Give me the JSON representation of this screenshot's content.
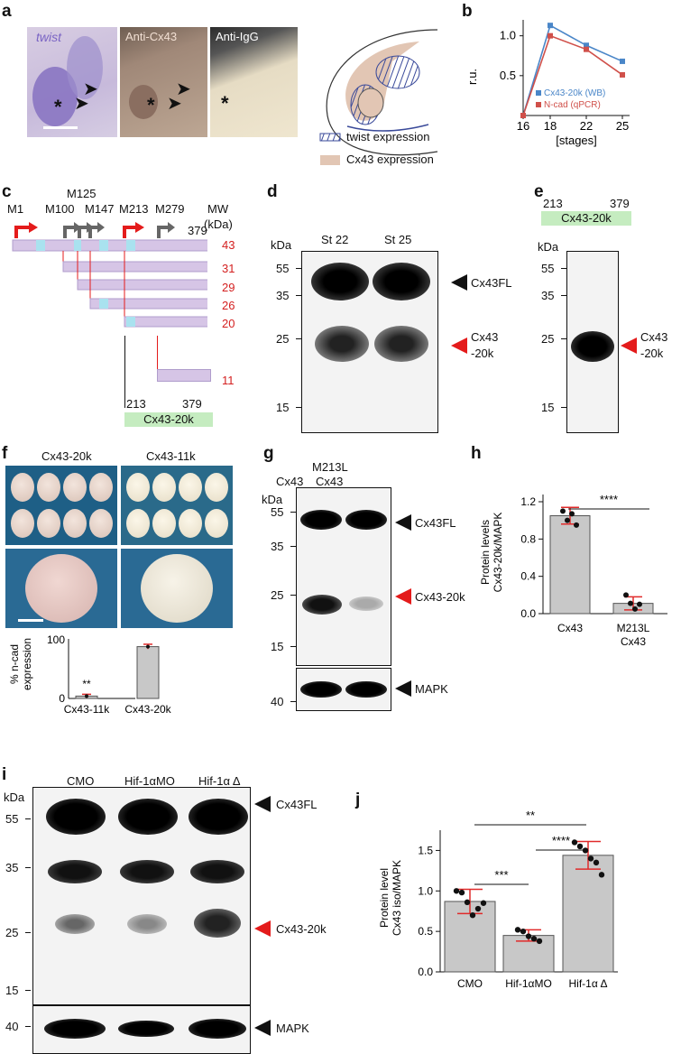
{
  "panel_letters": {
    "a": "a",
    "b": "b",
    "c": "c",
    "d": "d",
    "e": "e",
    "f": "f",
    "g": "g",
    "h": "h",
    "i": "i",
    "j": "j"
  },
  "panel_a": {
    "img1_label": "twist",
    "img2_label": "Anti-Cx43",
    "img3_label": "Anti-IgG",
    "asterisk": "*",
    "legend_twist": "twist expression",
    "legend_cx43": "Cx43 expression",
    "colors": {
      "twist": "#6a5aa8",
      "cx43": "#e2c6b4"
    }
  },
  "panel_b": {
    "ylabel": "r.u.",
    "xlabel": "[stages]",
    "yticks": [
      "1.0",
      "0.5"
    ],
    "xticks": [
      "16",
      "18",
      "22",
      "25"
    ],
    "legend1": "Cx43-20k (WB)",
    "legend2": "N-cad (qPCR)"
  },
  "panel_c": {
    "starts": [
      "M1",
      "M100",
      "M125",
      "M147",
      "M213",
      "M279"
    ],
    "mw_title": "MW",
    "mw_unit": "(kDa)",
    "end_label": "379",
    "mw_values": [
      "43",
      "31",
      "29",
      "26",
      "20",
      "11"
    ],
    "frag_start": "213",
    "frag_end": "379",
    "frag_name": "Cx43-20k"
  },
  "panel_d": {
    "unit": "kDa",
    "lanes": [
      "St 22",
      "St 25"
    ],
    "markers": [
      "55",
      "35",
      "25",
      "15"
    ],
    "label_fl": "Cx43FL",
    "label_20k_1": "Cx43",
    "label_20k_2": "-20k"
  },
  "panel_e": {
    "frag_start": "213",
    "frag_end": "379",
    "frag_name": "Cx43-20k",
    "unit": "kDa",
    "markers": [
      "55",
      "35",
      "25",
      "15"
    ],
    "label_1": "Cx43",
    "label_2": "-20k"
  },
  "panel_f": {
    "title1": "Cx43-20k",
    "title2": "Cx43-11k",
    "ylabel1": "% n-cad",
    "ylabel2": "expression",
    "ytick_top": "100",
    "ytick_bottom": "0",
    "sig": "**",
    "cat1": "Cx43-11k",
    "cat2": "Cx43-20k"
  },
  "panel_g": {
    "unit": "kDa",
    "lane1": "Cx43",
    "lane2_1": "M213L",
    "lane2_2": "Cx43",
    "markers": [
      "55",
      "35",
      "25",
      "15",
      "40"
    ],
    "label_fl": "Cx43FL",
    "label_20k": "Cx43-20k",
    "label_mapk": "MAPK"
  },
  "panel_h": {
    "ylabel1": "Protein levels",
    "ylabel2": "Cx43-20k/MAPK",
    "yticks": [
      "1.2",
      "0.8",
      "0.4",
      "0.0"
    ],
    "sig": "****",
    "cat1": "Cx43",
    "cat2_1": "M213L",
    "cat2_2": "Cx43"
  },
  "panel_i": {
    "unit": "kDa",
    "lanes": [
      "CMO",
      "Hif-1αMO",
      "Hif-1α Δ"
    ],
    "markers": [
      "55",
      "35",
      "25",
      "15",
      "40"
    ],
    "label_fl": "Cx43FL",
    "label_20k": "Cx43-20k",
    "label_mapk": "MAPK"
  },
  "panel_j": {
    "ylabel1": "Protein level",
    "ylabel2": "Cx43 iso/MAPK",
    "yticks": [
      "1.5",
      "1.0",
      "0.5",
      "0.0"
    ],
    "sig_top": "**",
    "sig_left": "***",
    "sig_right": "****",
    "cats": [
      "CMO",
      "Hif-1αMO",
      "Hif-1α Δ"
    ]
  },
  "chart_data": [
    {
      "type": "line",
      "panel": "b",
      "x": [
        16,
        18,
        22,
        25
      ],
      "series": [
        {
          "name": "Cx43-20k (WB)",
          "values": [
            0.0,
            1.13,
            0.88,
            0.68
          ],
          "color": "#4a86c8"
        },
        {
          "name": "N-cad (qPCR)",
          "values": [
            0.0,
            1.0,
            0.83,
            0.51
          ],
          "color": "#d0504a"
        }
      ],
      "xlabel": "[stages]",
      "ylabel": "r.u.",
      "ylim": [
        0.0,
        1.2
      ]
    },
    {
      "type": "bar",
      "panel": "f",
      "categories": [
        "Cx43-11k",
        "Cx43-20k"
      ],
      "values": [
        4,
        87
      ],
      "errors": [
        3,
        4
      ],
      "ylabel": "% n-cad expression",
      "ylim": [
        0,
        100
      ]
    },
    {
      "type": "bar",
      "panel": "h",
      "categories": [
        "Cx43",
        "M213L Cx43"
      ],
      "values": [
        1.05,
        0.11
      ],
      "errors": [
        0.09,
        0.07
      ],
      "points": [
        [
          1.1,
          1.0,
          1.07,
          0.95
        ],
        [
          0.2,
          0.11,
          0.05,
          0.1
        ]
      ],
      "ylabel": "Protein levels Cx43-20k/MAPK",
      "ylim": [
        0.0,
        1.2
      ]
    },
    {
      "type": "bar",
      "panel": "j",
      "categories": [
        "CMO",
        "Hif-1αMO",
        "Hif-1α Δ"
      ],
      "values": [
        0.87,
        0.45,
        1.44
      ],
      "errors": [
        0.15,
        0.07,
        0.17
      ],
      "points": [
        [
          1.0,
          0.98,
          0.86,
          0.7,
          0.78,
          0.85
        ],
        [
          0.52,
          0.5,
          0.44,
          0.41,
          0.38
        ],
        [
          1.6,
          1.55,
          1.5,
          1.4,
          1.35,
          1.2
        ]
      ],
      "ylabel": "Protein level Cx43 iso/MAPK",
      "ylim": [
        0.0,
        1.75
      ]
    }
  ]
}
